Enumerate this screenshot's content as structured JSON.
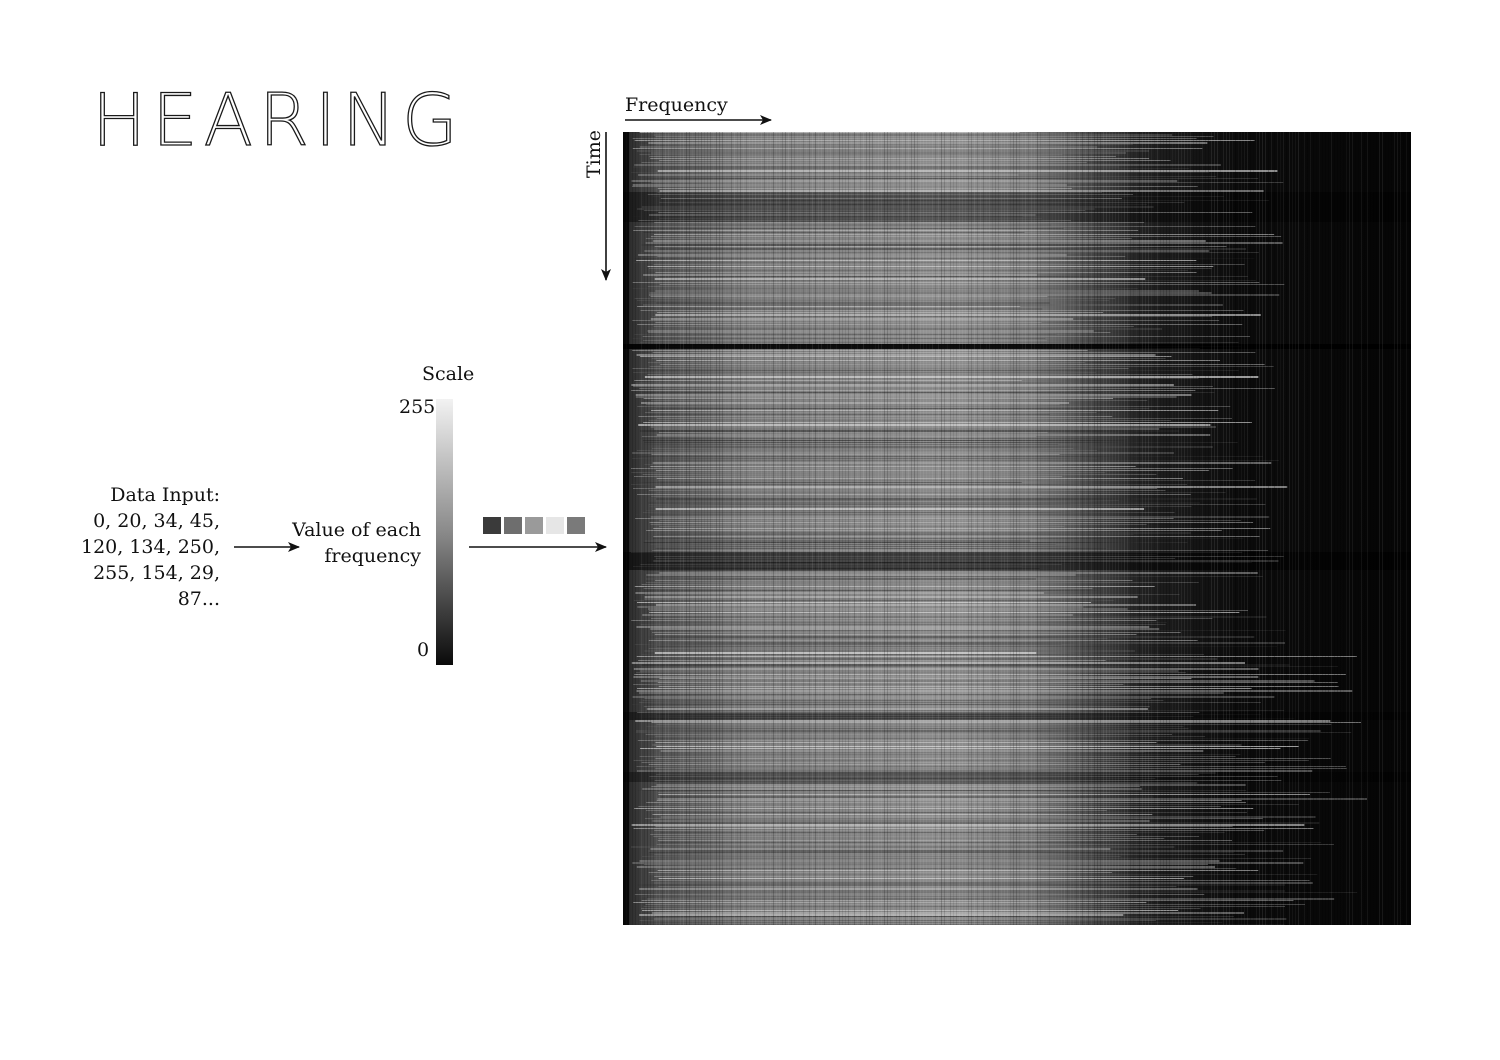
{
  "title": "HEARING",
  "data_input": {
    "heading": "Data Input:",
    "lines": [
      "0, 20, 34, 45,",
      "120, 134, 250,",
      "255, 154, 29,",
      "87..."
    ]
  },
  "value_label": {
    "lines": [
      "Value of each",
      "frequency"
    ]
  },
  "scale": {
    "label": "Scale",
    "max_label": "255",
    "min_label": "0"
  },
  "swatches": [
    "#3a3a3a",
    "#6e6e6e",
    "#9a9a9a",
    "#e6e6e6",
    "#7a7a7a"
  ],
  "axes": {
    "x_label": "Frequency",
    "y_label": "Time"
  }
}
